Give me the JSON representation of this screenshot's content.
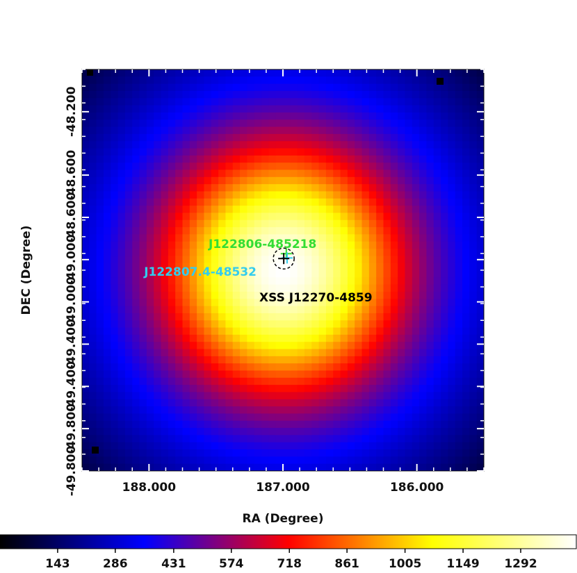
{
  "chart_data": {
    "type": "heatmap",
    "title": "",
    "xlabel": "RA (Degree)",
    "ylabel": "DEC (Degree)",
    "x_range": [
      188.5,
      185.5
    ],
    "y_range": [
      -49.9,
      -48.0
    ],
    "x_ticks": [
      {
        "value": 188.0,
        "label": "188.000"
      },
      {
        "value": 187.0,
        "label": "187.000"
      },
      {
        "value": 186.0,
        "label": "186.000"
      }
    ],
    "y_ticks": [
      {
        "value": -48.2,
        "label": "-48.200"
      },
      {
        "value": -48.5,
        "label": "-48.600"
      },
      {
        "value": -48.7,
        "label": "-48.600"
      },
      {
        "value": -48.9,
        "label": "-49.000"
      },
      {
        "value": -49.1,
        "label": "-49.000"
      },
      {
        "value": -49.3,
        "label": "-49.400"
      },
      {
        "value": -49.5,
        "label": "-49.400"
      },
      {
        "value": -49.7,
        "label": "-49.800"
      },
      {
        "value": -49.9,
        "label": "-49.800"
      }
    ],
    "intensity_peak": {
      "ra": 187.0,
      "dec": -48.95,
      "value": 1430
    },
    "colorbar": {
      "colormap": "heat (black-blue-red-yellow-white)",
      "range": [
        0,
        1430
      ],
      "tick_labels": [
        "143",
        "286",
        "431",
        "574",
        "718",
        "861",
        "1005",
        "1149",
        "1292"
      ],
      "tick_values": [
        143,
        286,
        431,
        574,
        718,
        861,
        1005,
        1149,
        1292
      ]
    },
    "sources": [
      {
        "name": "J122806-485218",
        "ra": 186.975,
        "dec": -48.872,
        "color": "#33dd33",
        "marker": "plus"
      },
      {
        "name": "J122807.4-48532",
        "ra": 186.969,
        "dec": -48.892,
        "color": "#33ccee",
        "marker": "plus"
      },
      {
        "name": "XSS J12270-4859",
        "ra": 186.994,
        "dec": -48.895,
        "color": "#000000",
        "marker": "plus-circle"
      }
    ]
  }
}
